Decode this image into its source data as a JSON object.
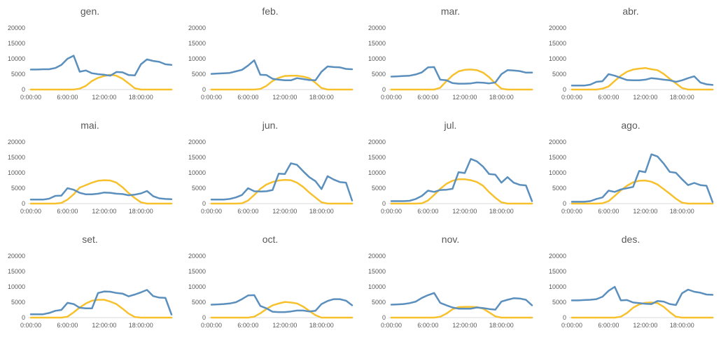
{
  "chart_data": {
    "type": "line",
    "ylim": [
      0,
      20000
    ],
    "yticks": [
      "20000",
      "15000",
      "10000",
      "5000",
      "0"
    ],
    "xtick_labels": [
      "0:00:00",
      "6:00:00",
      "12:00:00",
      "18:00:00"
    ],
    "x": [
      "0:00:00",
      "1:00:00",
      "2:00:00",
      "3:00:00",
      "4:00:00",
      "5:00:00",
      "6:00:00",
      "7:00:00",
      "8:00:00",
      "9:00:00",
      "10:00:00",
      "11:00:00",
      "12:00:00",
      "13:00:00",
      "14:00:00",
      "15:00:00",
      "16:00:00",
      "17:00:00",
      "18:00:00",
      "19:00:00",
      "20:00:00",
      "21:00:00",
      "22:00:00",
      "23:00:00"
    ],
    "colors": {
      "blue": "#5b8fbd",
      "yellow": "#f7c12e"
    },
    "panels": [
      {
        "title": "gen.",
        "blue": [
          6500,
          6500,
          6600,
          6600,
          7000,
          8000,
          10000,
          11000,
          5800,
          6200,
          5300,
          5000,
          4800,
          4500,
          5700,
          5600,
          4700,
          4600,
          8200,
          9800,
          9300,
          9000,
          8200,
          8000
        ],
        "yellow": [
          0,
          0,
          0,
          0,
          0,
          0,
          0,
          0,
          300,
          1200,
          2800,
          3800,
          4400,
          4800,
          4500,
          3500,
          2000,
          400,
          0,
          0,
          0,
          0,
          0,
          0
        ]
      },
      {
        "title": "feb.",
        "blue": [
          5100,
          5200,
          5300,
          5400,
          5900,
          6400,
          7800,
          9500,
          4800,
          4700,
          3500,
          3200,
          3000,
          3000,
          3700,
          3400,
          3100,
          3000,
          5800,
          7500,
          7300,
          7200,
          6700,
          6600
        ],
        "yellow": [
          0,
          0,
          0,
          0,
          0,
          0,
          0,
          0,
          200,
          1200,
          2800,
          3800,
          4400,
          4500,
          4500,
          4200,
          3700,
          2200,
          500,
          0,
          0,
          0,
          0,
          0
        ]
      },
      {
        "title": "mar.",
        "blue": [
          4200,
          4300,
          4400,
          4500,
          4900,
          5600,
          7200,
          7300,
          3200,
          3000,
          2100,
          1900,
          1900,
          2000,
          2300,
          2200,
          2000,
          2300,
          5000,
          6300,
          6200,
          6000,
          5500,
          5500
        ],
        "yellow": [
          0,
          0,
          0,
          0,
          0,
          0,
          0,
          0,
          600,
          2700,
          4600,
          5900,
          6400,
          6500,
          6300,
          5500,
          4000,
          2000,
          300,
          0,
          0,
          0,
          0,
          0
        ]
      },
      {
        "title": "abr.",
        "blue": [
          1300,
          1300,
          1300,
          1600,
          2500,
          2700,
          5000,
          4500,
          3800,
          3100,
          3000,
          3000,
          3200,
          3700,
          3500,
          3200,
          3000,
          2500,
          3000,
          3700,
          4300,
          2300,
          1700,
          1500
        ],
        "yellow": [
          0,
          0,
          0,
          0,
          0,
          300,
          1000,
          2800,
          4500,
          5800,
          6500,
          6800,
          7000,
          6600,
          6300,
          5100,
          3500,
          2000,
          500,
          0,
          0,
          0,
          0,
          0
        ]
      },
      {
        "title": "mai.",
        "blue": [
          1300,
          1300,
          1300,
          1600,
          2500,
          2600,
          5000,
          4500,
          3500,
          3000,
          3000,
          3200,
          3600,
          3500,
          3200,
          3100,
          2700,
          2900,
          3300,
          4100,
          2400,
          1700,
          1500,
          1400
        ],
        "yellow": [
          0,
          0,
          0,
          0,
          0,
          200,
          1300,
          3000,
          5200,
          6000,
          6800,
          7400,
          7600,
          7500,
          6800,
          5300,
          3400,
          1800,
          400,
          0,
          0,
          0,
          0,
          0
        ]
      },
      {
        "title": "jun.",
        "blue": [
          1300,
          1300,
          1300,
          1500,
          2000,
          2800,
          5000,
          4000,
          3900,
          4000,
          4400,
          9700,
          9600,
          13100,
          12600,
          10500,
          8600,
          7300,
          4700,
          8900,
          7800,
          7000,
          6800,
          1000
        ],
        "yellow": [
          0,
          0,
          0,
          0,
          0,
          100,
          1000,
          2800,
          4800,
          6200,
          7000,
          7500,
          7700,
          7600,
          6800,
          5400,
          3600,
          2000,
          400,
          0,
          0,
          0,
          0,
          0
        ]
      },
      {
        "title": "jul.",
        "blue": [
          800,
          800,
          800,
          900,
          1500,
          2500,
          4200,
          3800,
          4400,
          4500,
          4800,
          10200,
          9900,
          14500,
          13700,
          12000,
          9600,
          9400,
          6800,
          8600,
          6800,
          6100,
          5900,
          800
        ],
        "yellow": [
          0,
          0,
          0,
          0,
          0,
          100,
          1000,
          2800,
          4800,
          6400,
          7400,
          7900,
          7900,
          7600,
          7000,
          5800,
          3700,
          1900,
          400,
          0,
          0,
          0,
          0,
          0
        ]
      },
      {
        "title": "ago.",
        "blue": [
          600,
          600,
          600,
          800,
          1500,
          2000,
          4200,
          3800,
          4600,
          5000,
          5400,
          10600,
          10200,
          16000,
          15300,
          13000,
          10300,
          10000,
          7900,
          6000,
          6700,
          6000,
          5800,
          500
        ],
        "yellow": [
          0,
          0,
          0,
          0,
          0,
          100,
          800,
          2500,
          4300,
          5800,
          6900,
          7400,
          7500,
          7100,
          6200,
          4700,
          3200,
          1600,
          300,
          0,
          0,
          0,
          0,
          0
        ]
      },
      {
        "title": "set.",
        "blue": [
          1100,
          1100,
          1100,
          1500,
          2200,
          2500,
          4800,
          4400,
          3200,
          3000,
          3000,
          8000,
          8500,
          8400,
          8000,
          7800,
          6900,
          7500,
          8200,
          9000,
          7000,
          6500,
          6400,
          1000
        ],
        "yellow": [
          0,
          0,
          0,
          0,
          0,
          0,
          300,
          1700,
          3300,
          4600,
          5500,
          5800,
          5800,
          5200,
          4400,
          2900,
          1300,
          200,
          0,
          0,
          0,
          0,
          0,
          0
        ]
      },
      {
        "title": "oct.",
        "blue": [
          4200,
          4300,
          4400,
          4600,
          5000,
          6000,
          7200,
          7300,
          3800,
          3000,
          1900,
          1800,
          1800,
          2000,
          2300,
          2300,
          2000,
          2200,
          4400,
          5400,
          6000,
          6000,
          5500,
          4000
        ],
        "yellow": [
          0,
          0,
          0,
          0,
          0,
          0,
          0,
          300,
          1400,
          2800,
          4000,
          4600,
          5100,
          4900,
          4600,
          3600,
          2200,
          800,
          0,
          0,
          0,
          0,
          0,
          0
        ]
      },
      {
        "title": "nov.",
        "blue": [
          4200,
          4300,
          4400,
          4700,
          5200,
          6400,
          7300,
          8000,
          4800,
          4000,
          3300,
          2900,
          2900,
          2900,
          3300,
          3100,
          2800,
          2600,
          5200,
          5800,
          6300,
          6200,
          5800,
          4000
        ],
        "yellow": [
          0,
          0,
          0,
          0,
          0,
          0,
          0,
          0,
          300,
          1300,
          2700,
          3400,
          3500,
          3500,
          3400,
          2900,
          1700,
          400,
          0,
          0,
          0,
          0,
          0,
          0
        ]
      },
      {
        "title": "des.",
        "blue": [
          5600,
          5600,
          5700,
          5800,
          6000,
          6800,
          8700,
          10000,
          5600,
          5700,
          4900,
          4700,
          4500,
          4400,
          5400,
          5200,
          4400,
          4100,
          7900,
          9100,
          8400,
          8100,
          7500,
          7400
        ],
        "yellow": [
          0,
          0,
          0,
          0,
          0,
          0,
          0,
          0,
          300,
          1500,
          3200,
          4300,
          4800,
          4900,
          4700,
          3500,
          1800,
          300,
          0,
          0,
          0,
          0,
          0,
          0
        ]
      }
    ]
  }
}
